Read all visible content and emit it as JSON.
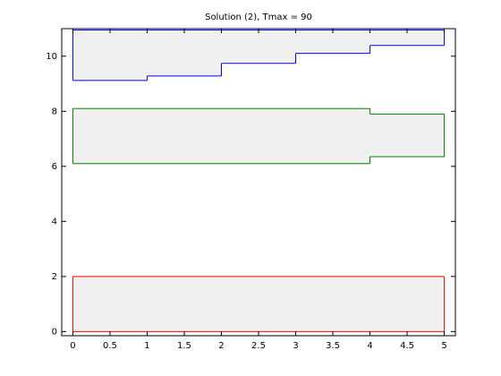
{
  "chart_data": {
    "type": "step-band",
    "title": "Solution (2), Tmax = 90",
    "xlim": [
      -0.15,
      5.15
    ],
    "ylim": [
      -0.15,
      11
    ],
    "xticks": [
      0,
      0.5,
      1,
      1.5,
      2,
      2.5,
      3,
      3.5,
      4,
      4.5,
      5
    ],
    "yticks": [
      0,
      2,
      4,
      6,
      8,
      10
    ],
    "fill": "#f0f0f0",
    "series": [
      {
        "color": "#ff0000",
        "bins": [
          0,
          5
        ],
        "lower": [
          0
        ],
        "upper": [
          2
        ]
      },
      {
        "color": "#008000",
        "bins": [
          0,
          4,
          5
        ],
        "lower": [
          6.1,
          6.35
        ],
        "upper": [
          8.1,
          7.9
        ]
      },
      {
        "color": "#0000ff",
        "bins": [
          0,
          1,
          2,
          3,
          4,
          5
        ],
        "lower": [
          9.12,
          9.28,
          9.74,
          10.1,
          10.39
        ],
        "upper": [
          10.95,
          10.95,
          10.95,
          10.95,
          10.95
        ]
      }
    ]
  }
}
